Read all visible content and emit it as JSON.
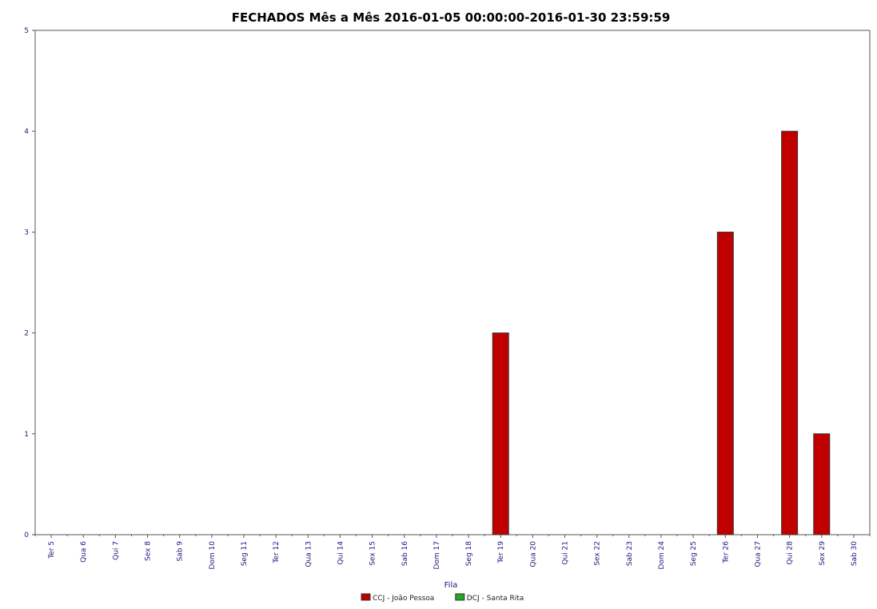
{
  "chart_data": {
    "type": "bar",
    "title": "FECHADOS Mês a Mês 2016-01-05 00:00:00-2016-01-30 23:59:59",
    "xlabel": "Fila",
    "ylabel": "",
    "ylim": [
      0,
      5
    ],
    "yticks": [
      "0",
      "1",
      "2",
      "3",
      "4",
      "5"
    ],
    "grid": false,
    "legend_position": "bottom-center",
    "categories": [
      "Ter 5",
      "Qua 6",
      "Qui 7",
      "Sex 8",
      "Sab 9",
      "Dom 10",
      "Seg 11",
      "Ter 12",
      "Qua 13",
      "Qui 14",
      "Sex 15",
      "Sab 16",
      "Dom 17",
      "Seg 18",
      "Ter 19",
      "Qua 20",
      "Qui 21",
      "Sex 22",
      "Sab 23",
      "Dom 24",
      "Seg 25",
      "Ter 26",
      "Qua 27",
      "Qui 28",
      "Sex 29",
      "Sab 30"
    ],
    "series": [
      {
        "name": "CCJ - João Pessoa",
        "color": "#c00000",
        "values": [
          0,
          0,
          0,
          0,
          0,
          0,
          0,
          0,
          0,
          0,
          0,
          0,
          0,
          0,
          2,
          0,
          0,
          0,
          0,
          0,
          0,
          3,
          0,
          4,
          1,
          0
        ]
      },
      {
        "name": "DCJ - Santa Rita",
        "color": "#22aa22",
        "values": [
          0,
          0,
          0,
          0,
          0,
          0,
          0,
          0,
          0,
          0,
          0,
          0,
          0,
          0,
          0,
          0,
          0,
          0,
          0,
          0,
          0,
          0,
          0,
          0,
          0,
          0
        ]
      }
    ],
    "colors": {
      "axis": "#555555",
      "tick_label": "#1a1a80",
      "title": "#000000"
    }
  }
}
